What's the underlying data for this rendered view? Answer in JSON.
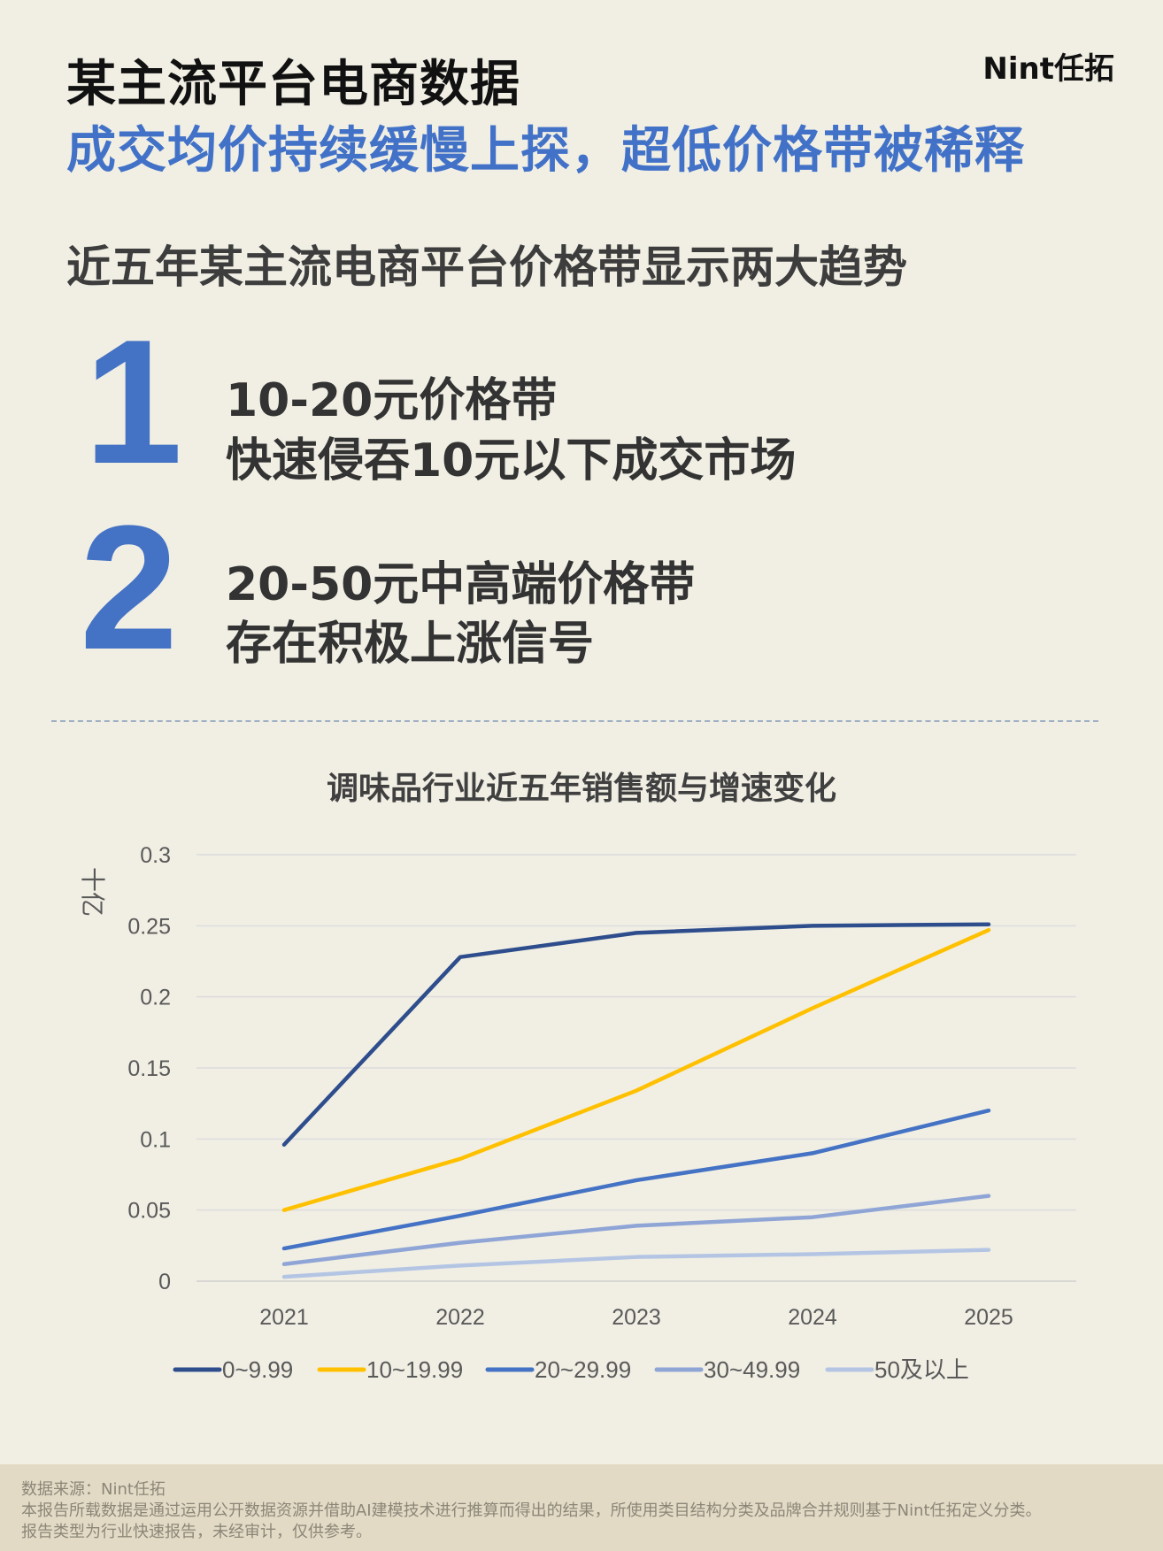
{
  "header": {
    "title": "某主流平台电商数据",
    "subtitle": "成交均价持续缓慢上探，超低价格带被稀释",
    "brand": "Nint任拓"
  },
  "section_heading": "近五年某主流电商平台价格带显示两大趋势",
  "points": [
    {
      "number": "1",
      "line1": "10-20元价格带",
      "line2": "快速侵吞10元以下成交市场"
    },
    {
      "number": "2",
      "line1": "20-50元中高端价格带",
      "line2": "存在积极上涨信号"
    }
  ],
  "chart_data": {
    "type": "line",
    "title": "调味品行业近五年销售额与增速变化",
    "ylabel": "十亿",
    "x": [
      "2021",
      "2022",
      "2023",
      "2024",
      "2025"
    ],
    "ylim": [
      0,
      0.3
    ],
    "yticks": [
      "0",
      "0.05",
      "0.1",
      "0.15",
      "0.2",
      "0.25",
      "0.3"
    ],
    "grid": true,
    "legend_position": "bottom",
    "series": [
      {
        "name": "0~9.99",
        "color": "#2e4d8c",
        "values": [
          0.096,
          0.228,
          0.245,
          0.25,
          0.251
        ]
      },
      {
        "name": "10~19.99",
        "color": "#ffc000",
        "values": [
          0.05,
          0.086,
          0.134,
          0.192,
          0.247
        ]
      },
      {
        "name": "20~29.99",
        "color": "#4472c4",
        "values": [
          0.023,
          0.046,
          0.071,
          0.09,
          0.12
        ]
      },
      {
        "name": "30~49.99",
        "color": "#8fa5d6",
        "values": [
          0.012,
          0.027,
          0.039,
          0.045,
          0.06
        ]
      },
      {
        "name": "50及以上",
        "color": "#b4c5e4",
        "values": [
          0.003,
          0.011,
          0.017,
          0.019,
          0.022
        ]
      }
    ]
  },
  "footer": {
    "source": "数据来源：Nint任拓",
    "note": "本报告所载数据是通过运用公开数据资源并借助AI建模技术进行推算而得出的结果，所使用类目结构分类及品牌合并规则基于Nint任拓定义分类。",
    "disclaimer": "报告类型为行业快速报告，未经审计，仅供参考。"
  }
}
